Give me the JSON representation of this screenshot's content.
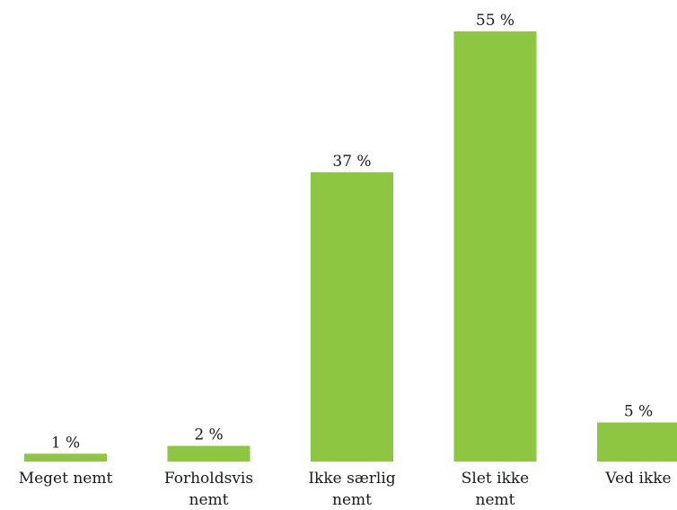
{
  "chart_data": {
    "type": "bar",
    "title": "",
    "xlabel": "",
    "ylabel": "",
    "unit": "%",
    "ylim": [
      0,
      55
    ],
    "grid": false,
    "legend": "none",
    "bar_color": "#8dc641",
    "categories": [
      [
        "Meget nemt"
      ],
      [
        "Forholdsvis",
        "nemt"
      ],
      [
        "Ikke særlig",
        "nemt"
      ],
      [
        "Slet ikke",
        "nemt"
      ],
      [
        "Ved ikke"
      ]
    ],
    "values": [
      1,
      2,
      37,
      55,
      5
    ],
    "data_labels": [
      "1 %",
      "2 %",
      "37 %",
      "55 %",
      "5 %"
    ]
  }
}
